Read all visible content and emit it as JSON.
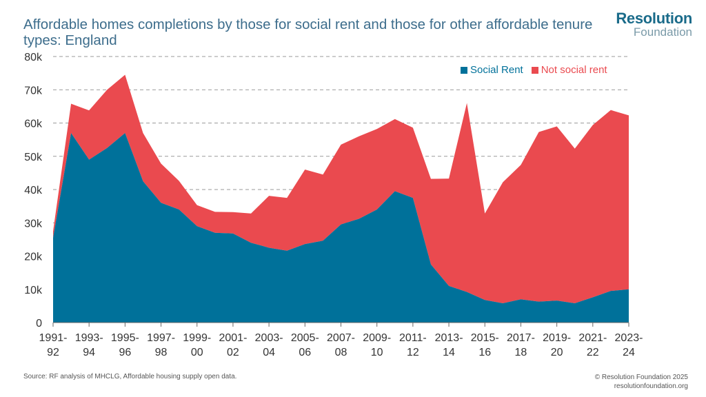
{
  "title": "Affordable homes completions by those for social rent and those for other affordable tenure types: England",
  "brand": {
    "line1": "Resolution",
    "line2": "Foundation"
  },
  "source": "Source: RF analysis of MHCLG, Affordable housing supply open data.",
  "copyright": {
    "line1": "© Resolution Foundation 2025",
    "line2": "resolutionfoundation.org"
  },
  "colors": {
    "social": "#00719a",
    "other": "#ea4a4f",
    "grid": "#999999",
    "text": "#333333"
  },
  "chart_data": {
    "type": "area",
    "stacked": true,
    "title": "Affordable homes completions by those for social rent and those for other affordable tenure types: England",
    "xlabel": "",
    "ylabel": "",
    "ylim": [
      0,
      80000
    ],
    "yticks": [
      {
        "v": 0,
        "label": "0"
      },
      {
        "v": 10000,
        "label": "10k"
      },
      {
        "v": 20000,
        "label": "20k"
      },
      {
        "v": 30000,
        "label": "30k"
      },
      {
        "v": 40000,
        "label": "40k"
      },
      {
        "v": 50000,
        "label": "50k"
      },
      {
        "v": 60000,
        "label": "60k"
      },
      {
        "v": 70000,
        "label": "70k"
      },
      {
        "v": 80000,
        "label": "80k"
      }
    ],
    "grid": true,
    "legend_position": "top-right",
    "categories": [
      "1991-92",
      "1992-93",
      "1993-94",
      "1994-95",
      "1995-96",
      "1996-97",
      "1997-98",
      "1998-99",
      "1999-00",
      "2000-01",
      "2001-02",
      "2002-03",
      "2003-04",
      "2004-05",
      "2005-06",
      "2006-07",
      "2007-08",
      "2008-09",
      "2009-10",
      "2010-11",
      "2011-12",
      "2012-13",
      "2013-14",
      "2014-15",
      "2015-16",
      "2016-17",
      "2017-18",
      "2018-19",
      "2019-20",
      "2020-21",
      "2021-22",
      "2022-23",
      "2023-24"
    ],
    "xticks": [
      {
        "i": 0,
        "l1": "1991-",
        "l2": "92"
      },
      {
        "i": 2,
        "l1": "1993-",
        "l2": "94"
      },
      {
        "i": 4,
        "l1": "1995-",
        "l2": "96"
      },
      {
        "i": 6,
        "l1": "1997-",
        "l2": "98"
      },
      {
        "i": 8,
        "l1": "1999-",
        "l2": "00"
      },
      {
        "i": 10,
        "l1": "2001-",
        "l2": "02"
      },
      {
        "i": 12,
        "l1": "2003-",
        "l2": "04"
      },
      {
        "i": 14,
        "l1": "2005-",
        "l2": "06"
      },
      {
        "i": 16,
        "l1": "2007-",
        "l2": "08"
      },
      {
        "i": 18,
        "l1": "2009-",
        "l2": "10"
      },
      {
        "i": 20,
        "l1": "2011-",
        "l2": "12"
      },
      {
        "i": 22,
        "l1": "2013-",
        "l2": "14"
      },
      {
        "i": 24,
        "l1": "2015-",
        "l2": "16"
      },
      {
        "i": 26,
        "l1": "2017-",
        "l2": "18"
      },
      {
        "i": 28,
        "l1": "2019-",
        "l2": "20"
      },
      {
        "i": 30,
        "l1": "2021-",
        "l2": "22"
      },
      {
        "i": 32,
        "l1": "2023-",
        "l2": "24"
      }
    ],
    "series": [
      {
        "name": "Social Rent",
        "values": [
          25500,
          57000,
          49000,
          52500,
          57000,
          42500,
          36000,
          34000,
          29000,
          27000,
          26800,
          24000,
          22500,
          21600,
          23600,
          24600,
          29500,
          31200,
          34000,
          39500,
          37500,
          17500,
          11000,
          9200,
          6800,
          5800,
          7000,
          6300,
          6600,
          5800,
          7600,
          9500,
          10000
        ]
      },
      {
        "name": "Not social rent",
        "values": [
          2000,
          8800,
          14800,
          17500,
          17500,
          14500,
          11800,
          8600,
          6300,
          6300,
          6400,
          8800,
          15600,
          15900,
          22400,
          19900,
          24000,
          24800,
          24200,
          21700,
          21100,
          25700,
          32300,
          56800,
          26000,
          36400,
          40400,
          51000,
          52400,
          46500,
          51800,
          54400,
          52300
        ]
      }
    ]
  }
}
